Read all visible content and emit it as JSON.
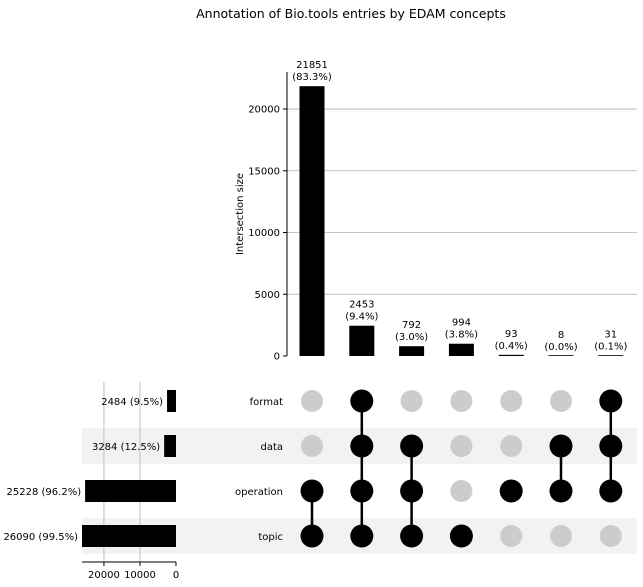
{
  "chart_data": {
    "type": "upset",
    "title": "Annotation of Bio.tools entries by EDAM concepts",
    "ylabel": "Intersection size",
    "ylim": [
      0,
      23000
    ],
    "yticks": [
      0,
      5000,
      10000,
      15000,
      20000
    ],
    "sets": [
      {
        "name": "format",
        "size": 2484,
        "label": "2484 (9.5%)"
      },
      {
        "name": "data",
        "size": 3284,
        "label": "3284 (12.5%)"
      },
      {
        "name": "operation",
        "size": 25228,
        "label": "25228 (96.2%)"
      },
      {
        "name": "topic",
        "size": 26090,
        "label": "26090 (99.5%)"
      }
    ],
    "set_size_ticks": [
      20000,
      10000,
      0
    ],
    "set_size_max": 26090,
    "intersections": [
      {
        "value": 21851,
        "label": "21851",
        "pct": "(83.3%)",
        "members": [
          "operation",
          "topic"
        ]
      },
      {
        "value": 2453,
        "label": "2453",
        "pct": "(9.4%)",
        "members": [
          "format",
          "data",
          "operation",
          "topic"
        ]
      },
      {
        "value": 792,
        "label": "792",
        "pct": "(3.0%)",
        "members": [
          "data",
          "operation",
          "topic"
        ]
      },
      {
        "value": 994,
        "label": "994",
        "pct": "(3.8%)",
        "members": [
          "topic"
        ]
      },
      {
        "value": 93,
        "label": "93",
        "pct": "(0.4%)",
        "members": [
          "operation"
        ]
      },
      {
        "value": 8,
        "label": "8",
        "pct": "(0.0%)",
        "members": [
          "data",
          "operation"
        ]
      },
      {
        "value": 31,
        "label": "31",
        "pct": "(0.1%)",
        "members": [
          "format",
          "data",
          "operation"
        ]
      }
    ],
    "colors": {
      "bar": "#000000",
      "dot_on": "#000000",
      "dot_off": "#cccccc",
      "stripe": "#f2f2f2",
      "grid": "#b0b0b0"
    },
    "grid": true
  }
}
